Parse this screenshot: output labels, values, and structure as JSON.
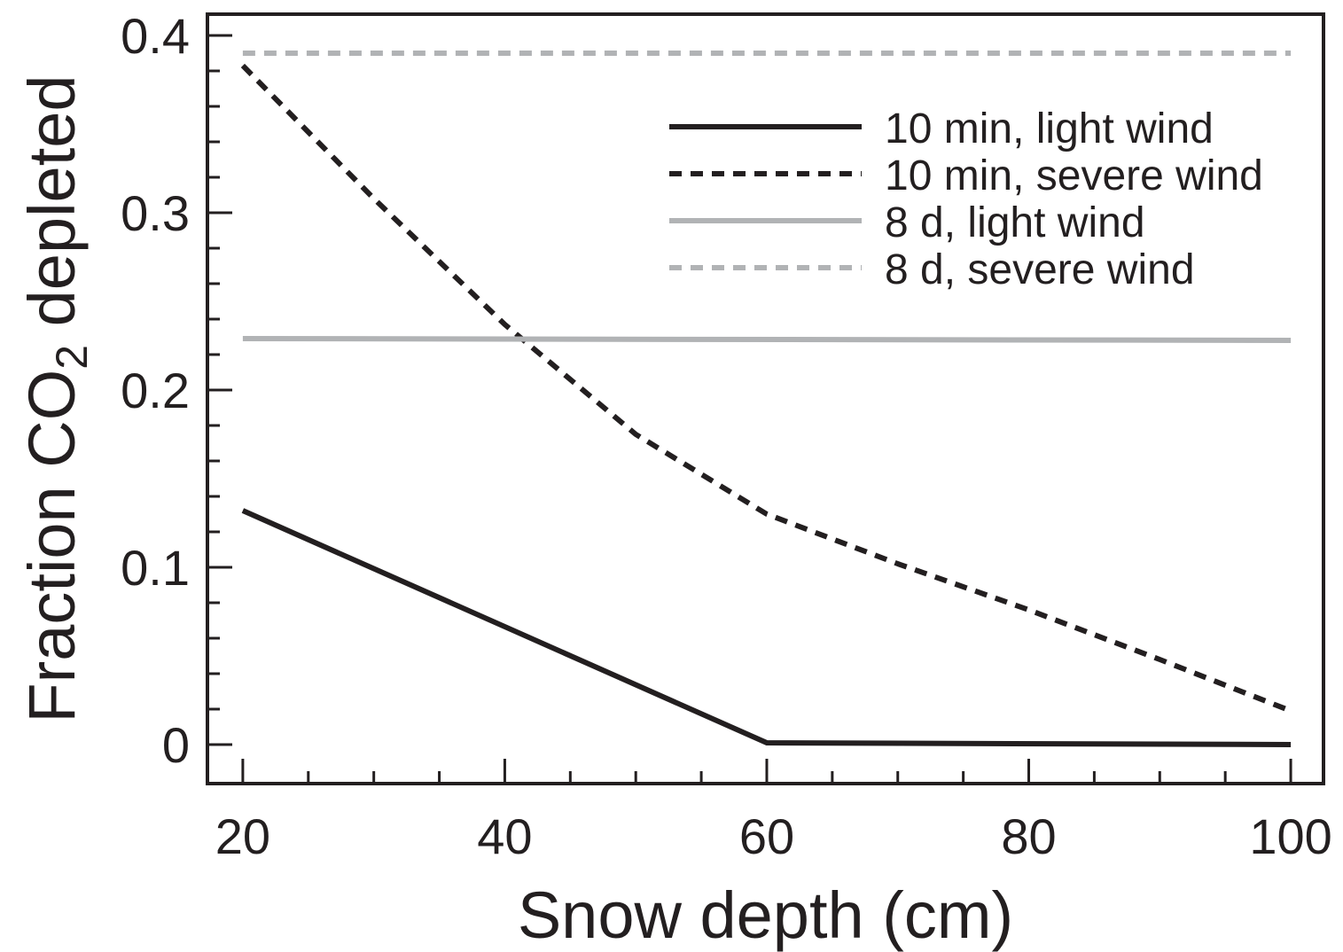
{
  "chart_data": {
    "type": "line",
    "xlabel": "Snow depth (cm)",
    "ylabel": {
      "prefix": "Fraction CO",
      "subscript": "2",
      "suffix": " depleted"
    },
    "xlim": [
      17.3,
      102.5
    ],
    "ylim": [
      -0.022,
      0.412
    ],
    "x_ticks": [
      20,
      40,
      60,
      80,
      100
    ],
    "x_tick_labels": [
      "20",
      "40",
      "60",
      "80",
      "100"
    ],
    "y_ticks": [
      0,
      0.1,
      0.2,
      0.3,
      0.4
    ],
    "y_tick_labels": [
      "0",
      "0.1",
      "0.2",
      "0.3",
      "0.4"
    ],
    "x_minor_step": 5,
    "y_minor_step": 0.02,
    "grid": false,
    "legend_position": "top-right",
    "series": [
      {
        "name": "10 min, light wind",
        "color": "#231f20",
        "dash": "solid",
        "x": [
          20,
          60,
          100
        ],
        "y": [
          0.132,
          0.001,
          0.0
        ]
      },
      {
        "name": "10 min, severe wind",
        "color": "#231f20",
        "dash": "dashed",
        "x": [
          20,
          30,
          40,
          50,
          60,
          70,
          80,
          90,
          100
        ],
        "y": [
          0.383,
          0.308,
          0.237,
          0.175,
          0.13,
          0.102,
          0.076,
          0.048,
          0.019
        ]
      },
      {
        "name": "8 d, light wind",
        "color": "#b1b3b5",
        "dash": "solid",
        "x": [
          20,
          100
        ],
        "y": [
          0.229,
          0.228
        ]
      },
      {
        "name": "8 d, severe wind",
        "color": "#b1b3b5",
        "dash": "dashed",
        "x": [
          20,
          100
        ],
        "y": [
          0.39,
          0.39
        ]
      }
    ]
  }
}
